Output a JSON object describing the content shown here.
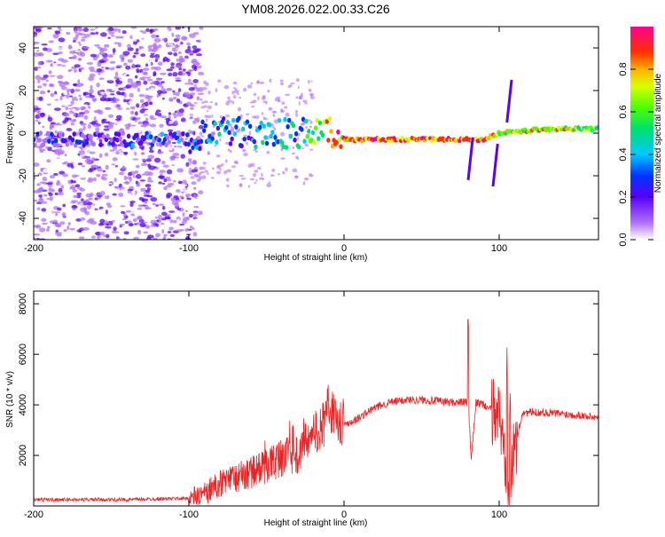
{
  "title": "YM08.2026.022.00.33.C26",
  "colors": {
    "background": "#ffffff",
    "snr_line": "#ee2222",
    "tick": "#000000"
  },
  "chart_data": [
    {
      "type": "heatmap",
      "name": "spectrogram",
      "xlabel": "Height of straight line (km)",
      "ylabel": "Frequency (Hz)",
      "xlim": [
        -200,
        164
      ],
      "ylim": [
        -50,
        50
      ],
      "x_ticks": [
        -200,
        -100,
        0,
        100
      ],
      "y_ticks": [
        -40,
        -20,
        0,
        20,
        40
      ],
      "colorbar": {
        "label": "Normalized spectral amplitude",
        "range": [
          0,
          1
        ],
        "ticks": [
          "0.0",
          "0.2",
          "0.4",
          "0.6",
          "0.8"
        ],
        "tick_values": [
          0.0,
          0.2,
          0.4,
          0.6,
          0.8
        ]
      },
      "ridge": [
        {
          "x": -200,
          "f": -3,
          "amp": 0.25
        },
        {
          "x": -150,
          "f": -3,
          "amp": 0.25
        },
        {
          "x": -100,
          "f": -3,
          "amp": 0.3
        },
        {
          "x": -80,
          "f": 0,
          "amp": 0.4
        },
        {
          "x": -50,
          "f": 0,
          "amp": 0.45
        },
        {
          "x": -30,
          "f": 0,
          "amp": 0.45
        },
        {
          "x": -20,
          "f": 0,
          "amp": 0.6
        },
        {
          "x": -10,
          "f": 0,
          "amp": 0.8
        },
        {
          "x": 0,
          "f": -3,
          "amp": 0.85
        },
        {
          "x": 50,
          "f": -3,
          "amp": 0.9
        },
        {
          "x": 90,
          "f": -3,
          "amp": 0.85
        },
        {
          "x": 100,
          "f": 0,
          "amp": 0.7
        },
        {
          "x": 130,
          "f": 2,
          "amp": 0.8
        },
        {
          "x": 164,
          "f": 2,
          "amp": 0.6
        }
      ]
    },
    {
      "type": "line",
      "name": "snr",
      "xlabel": "Height of straight line (km)",
      "ylabel": "SNR (10 * v/v)",
      "xlim": [
        -200,
        164
      ],
      "ylim": [
        0,
        8500
      ],
      "x_ticks": [
        -200,
        -100,
        0,
        100
      ],
      "y_ticks": [
        2000,
        4000,
        6000,
        8000
      ],
      "series": [
        {
          "name": "SNR",
          "x": [
            -200,
            -180,
            -160,
            -140,
            -120,
            -100,
            -90,
            -80,
            -70,
            -60,
            -50,
            -40,
            -30,
            -20,
            -15,
            -10,
            -5,
            0,
            10,
            20,
            30,
            40,
            50,
            60,
            70,
            75,
            80,
            82,
            85,
            90,
            95,
            100,
            103,
            105,
            107,
            110,
            115,
            130,
            150,
            164
          ],
          "y": [
            250,
            250,
            250,
            250,
            280,
            300,
            450,
            900,
            1100,
            1300,
            1600,
            1900,
            2100,
            2700,
            3100,
            3400,
            3600,
            3200,
            3500,
            3900,
            4100,
            4200,
            4200,
            4150,
            4100,
            4100,
            4100,
            1800,
            4100,
            4000,
            3800,
            3700,
            2200,
            1500,
            1000,
            2200,
            3700,
            3700,
            3600,
            3500
          ]
        }
      ]
    }
  ]
}
